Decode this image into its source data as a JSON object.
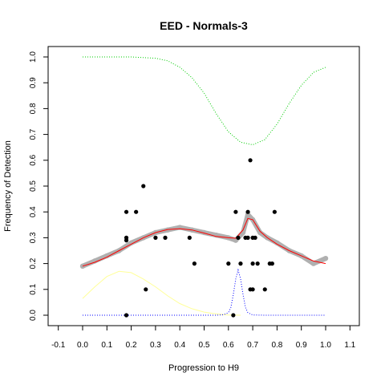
{
  "chart_data": {
    "type": "scatter",
    "title": "EED - Normals-3",
    "xlabel": "Progression to H9",
    "ylabel": "Frequency of Detection",
    "xlim": [
      -0.1,
      1.1
    ],
    "ylim": [
      0.0,
      1.0
    ],
    "x_ticks": [
      "-0.1",
      "0.0",
      "0.1",
      "0.2",
      "0.3",
      "0.4",
      "0.5",
      "0.6",
      "0.7",
      "0.8",
      "0.9",
      "1.0",
      "1.1"
    ],
    "y_ticks": [
      "0.0",
      "0.1",
      "0.2",
      "0.3",
      "0.4",
      "0.5",
      "0.6",
      "0.7",
      "0.8",
      "0.9",
      "1.0"
    ],
    "grid": false,
    "legend": "none",
    "colors": {
      "points": "#000000",
      "smoothed_points": "#b0b0b0",
      "fit_line": "#ff0000",
      "upper_dotted": "#00cc00",
      "yellow_curve": "#ffff99",
      "blue_dotted": "#0000ff"
    },
    "series": [
      {
        "kind": "points",
        "x": [
          0.18,
          0.18,
          0.18,
          0.18,
          0.22,
          0.25,
          0.26,
          0.3,
          0.34,
          0.44,
          0.46,
          0.6,
          0.62,
          0.63,
          0.64,
          0.65,
          0.67,
          0.68,
          0.68,
          0.69,
          0.69,
          0.7,
          0.7,
          0.7,
          0.71,
          0.72,
          0.75,
          0.77,
          0.78,
          0.79
        ],
        "y": [
          0.4,
          0.3,
          0.29,
          0.0,
          0.4,
          0.5,
          0.1,
          0.3,
          0.3,
          0.3,
          0.2,
          0.2,
          0.0,
          0.4,
          0.3,
          0.2,
          0.3,
          0.3,
          0.4,
          0.6,
          0.1,
          0.3,
          0.2,
          0.1,
          0.3,
          0.2,
          0.1,
          0.2,
          0.2,
          0.4
        ]
      },
      {
        "kind": "smoothed_points",
        "x": [
          0.0,
          0.05,
          0.1,
          0.15,
          0.2,
          0.25,
          0.3,
          0.35,
          0.4,
          0.45,
          0.5,
          0.55,
          0.6,
          0.63,
          0.66,
          0.68,
          0.7,
          0.73,
          0.76,
          0.8,
          0.85,
          0.9,
          0.95,
          1.0
        ],
        "y": [
          0.19,
          0.21,
          0.23,
          0.25,
          0.28,
          0.3,
          0.32,
          0.33,
          0.34,
          0.33,
          0.32,
          0.31,
          0.3,
          0.29,
          0.32,
          0.39,
          0.37,
          0.32,
          0.3,
          0.28,
          0.25,
          0.23,
          0.2,
          0.22
        ]
      },
      {
        "kind": "fit_line",
        "x": [
          0.0,
          0.05,
          0.1,
          0.15,
          0.2,
          0.25,
          0.3,
          0.35,
          0.4,
          0.45,
          0.5,
          0.55,
          0.6,
          0.63,
          0.66,
          0.68,
          0.7,
          0.73,
          0.76,
          0.8,
          0.85,
          0.9,
          0.95,
          1.0
        ],
        "y": [
          0.19,
          0.205,
          0.225,
          0.25,
          0.275,
          0.3,
          0.32,
          0.332,
          0.335,
          0.33,
          0.318,
          0.305,
          0.3,
          0.298,
          0.33,
          0.375,
          0.37,
          0.325,
          0.3,
          0.275,
          0.25,
          0.23,
          0.21,
          0.2
        ]
      },
      {
        "kind": "upper_dotted",
        "x": [
          0.0,
          0.1,
          0.2,
          0.3,
          0.35,
          0.4,
          0.45,
          0.5,
          0.55,
          0.6,
          0.65,
          0.7,
          0.75,
          0.8,
          0.85,
          0.9,
          0.95,
          1.0
        ],
        "y": [
          1.0,
          1.0,
          1.0,
          0.995,
          0.985,
          0.96,
          0.92,
          0.86,
          0.78,
          0.71,
          0.67,
          0.66,
          0.68,
          0.74,
          0.82,
          0.89,
          0.94,
          0.96
        ]
      },
      {
        "kind": "yellow_curve",
        "x": [
          0.0,
          0.05,
          0.1,
          0.15,
          0.2,
          0.25,
          0.3,
          0.35,
          0.4,
          0.45,
          0.5,
          0.55,
          0.6,
          0.65
        ],
        "y": [
          0.065,
          0.11,
          0.15,
          0.17,
          0.165,
          0.14,
          0.11,
          0.075,
          0.045,
          0.025,
          0.012,
          0.005,
          0.001,
          0.0
        ]
      },
      {
        "kind": "blue_dotted",
        "x": [
          0.0,
          0.5,
          0.55,
          0.58,
          0.6,
          0.61,
          0.62,
          0.63,
          0.64,
          0.65,
          0.66,
          0.67,
          0.68,
          0.7,
          0.75,
          1.0
        ],
        "y": [
          0.0,
          0.0,
          0.0,
          0.002,
          0.01,
          0.03,
          0.08,
          0.14,
          0.175,
          0.14,
          0.08,
          0.03,
          0.01,
          0.001,
          0.0,
          0.0
        ]
      }
    ]
  }
}
